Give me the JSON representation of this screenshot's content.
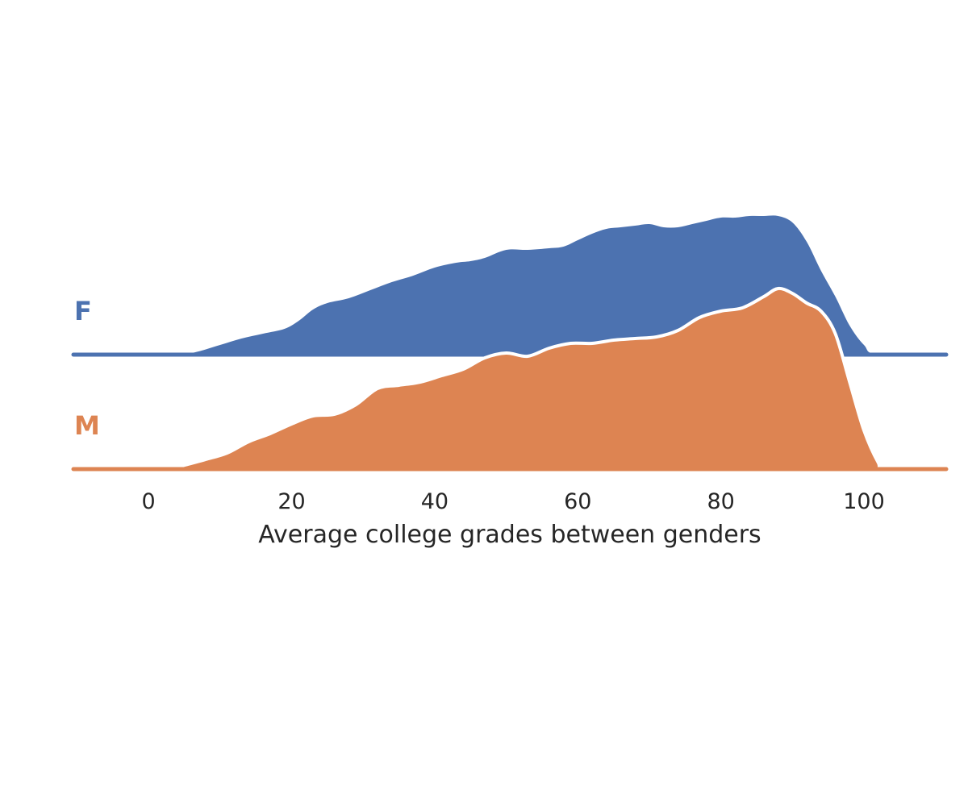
{
  "chart_data": {
    "type": "area",
    "subtype": "ridgeline-density",
    "title": "",
    "xlabel": "Average college grades between genders",
    "ylabel": "",
    "xlim": [
      -10.5,
      111.5
    ],
    "xticks": [
      0,
      20,
      40,
      60,
      80,
      100
    ],
    "grid": false,
    "legend": "none",
    "series": [
      {
        "name": "F",
        "color": "#4c72b0",
        "x": [
          -10.5,
          0,
          3,
          5,
          7,
          10,
          13,
          16,
          19,
          21,
          23,
          25,
          28,
          31,
          34,
          37,
          40,
          43,
          45,
          47,
          50,
          53,
          56,
          58,
          60,
          62,
          64,
          66,
          68,
          70,
          72,
          74,
          76,
          78,
          80,
          82,
          84,
          86,
          88,
          90,
          92,
          94,
          96,
          98,
          100,
          102,
          111.5
        ],
        "y": [
          0,
          0,
          0,
          0.002,
          0.01,
          0.03,
          0.05,
          0.065,
          0.08,
          0.105,
          0.14,
          0.16,
          0.175,
          0.2,
          0.225,
          0.245,
          0.27,
          0.285,
          0.29,
          0.3,
          0.325,
          0.325,
          0.33,
          0.335,
          0.355,
          0.375,
          0.39,
          0.395,
          0.4,
          0.405,
          0.395,
          0.395,
          0.405,
          0.415,
          0.425,
          0.425,
          0.43,
          0.43,
          0.43,
          0.41,
          0.35,
          0.26,
          0.18,
          0.09,
          0.03,
          0,
          0
        ]
      },
      {
        "name": "M",
        "color": "#dd8452",
        "x": [
          -10.5,
          0,
          3,
          5,
          8,
          11,
          14,
          17,
          20,
          23,
          26,
          29,
          32,
          35,
          38,
          41,
          44,
          47,
          50,
          53,
          56,
          59,
          62,
          65,
          68,
          71,
          74,
          77,
          80,
          83,
          86,
          88,
          90,
          92,
          94,
          96,
          98,
          100,
          102,
          103,
          111.5
        ],
        "y": [
          0,
          0,
          0,
          0.012,
          0.03,
          0.05,
          0.085,
          0.11,
          0.14,
          0.165,
          0.17,
          0.2,
          0.25,
          0.26,
          0.27,
          0.29,
          0.31,
          0.345,
          0.36,
          0.35,
          0.375,
          0.39,
          0.39,
          0.4,
          0.405,
          0.41,
          0.43,
          0.47,
          0.49,
          0.5,
          0.535,
          0.56,
          0.545,
          0.515,
          0.49,
          0.42,
          0.27,
          0.12,
          0.02,
          0,
          0
        ]
      }
    ]
  }
}
